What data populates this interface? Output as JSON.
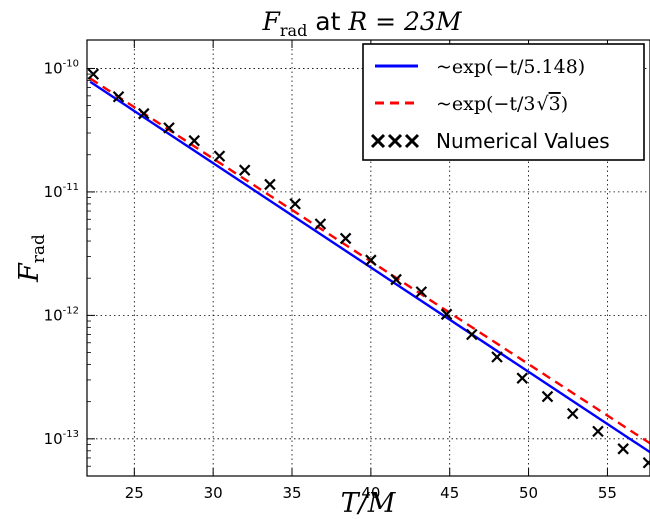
{
  "chart_data": {
    "type": "line",
    "title_parts": {
      "var": "F",
      "sub": "rad",
      "mid": " at ",
      "cond": "R = 23M"
    },
    "xlabel": "T/M",
    "ylabel_parts": {
      "var": "F",
      "sub": "rad"
    },
    "xlim": [
      22,
      57.7
    ],
    "ylim": [
      5e-14,
      1.7e-10
    ],
    "yscale": "log",
    "grid": true,
    "legend_position": "top-right",
    "x_ticks": [
      25,
      30,
      35,
      40,
      45,
      50,
      55
    ],
    "x_tick_labels": [
      "25",
      "30",
      "35",
      "40",
      "45",
      "50",
      "55"
    ],
    "y_ticks": [
      1e-10,
      1e-11,
      1e-12,
      1e-13
    ],
    "y_tick_labels": [
      {
        "base": "10",
        "exp": "-10"
      },
      {
        "base": "10",
        "exp": "-11"
      },
      {
        "base": "10",
        "exp": "-12"
      },
      {
        "base": "10",
        "exp": "-13"
      }
    ],
    "series": [
      {
        "name": "~exp(−t/5.148)",
        "kind": "line",
        "color": "#0000ff",
        "dash": "solid",
        "x": [
          22.2,
          57.7
        ],
        "y": [
          7.8e-11,
          7.8e-14
        ]
      },
      {
        "name": "~exp(−t/3√3)",
        "kind": "line",
        "color": "#ff0000",
        "dash": "dashed",
        "x": [
          22.2,
          57.7
        ],
        "y": [
          8.3e-11,
          9.2e-14
        ]
      },
      {
        "name": "Numerical Values",
        "kind": "scatter",
        "marker": "x",
        "color": "#000000",
        "x": [
          22.4,
          24.0,
          25.6,
          27.2,
          28.8,
          30.4,
          32.0,
          33.6,
          35.2,
          36.8,
          38.4,
          40.0,
          41.6,
          43.2,
          44.8,
          46.4,
          48.0,
          49.6,
          51.2,
          52.8,
          54.4,
          56.0,
          57.6
        ],
        "y": [
          9e-11,
          5.9e-11,
          4.3e-11,
          3.3e-11,
          2.6e-11,
          1.95e-11,
          1.5e-11,
          1.15e-11,
          8e-12,
          5.5e-12,
          4.2e-12,
          2.8e-12,
          1.95e-12,
          1.55e-12,
          1.02e-12,
          7e-13,
          4.6e-13,
          3.1e-13,
          2.2e-13,
          1.6e-13,
          1.15e-13,
          8.3e-14,
          6.4e-14
        ]
      }
    ],
    "legend": [
      {
        "kind": "line",
        "color": "#0000ff",
        "dash": "solid",
        "prefix": "~exp(−t/5.148)",
        "rad": ""
      },
      {
        "kind": "line",
        "color": "#ff0000",
        "dash": "dashed",
        "prefix": "~exp(−t/3",
        "rad": "3",
        "suffix": ")"
      },
      {
        "kind": "marker",
        "color": "#000000",
        "text": "Numerical Values"
      }
    ]
  }
}
